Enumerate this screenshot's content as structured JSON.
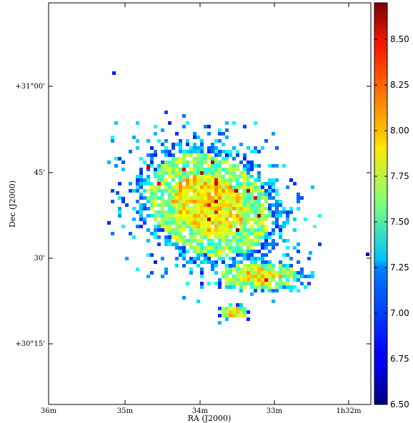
{
  "chart_data": {
    "type": "heatmap",
    "title": "",
    "xlabel": "RA (J2000)",
    "ylabel": "Dec (J2000)",
    "x_ticks": [
      "36m",
      "35m",
      "34m",
      "33m",
      "1h32m"
    ],
    "y_ticks": [
      "+31°00'",
      "45'",
      "30'",
      "+30°15'"
    ],
    "colorbar": {
      "colormap": "jet",
      "range": [
        6.5,
        8.7
      ],
      "ticks": [
        "6.50",
        "6.75",
        "7.00",
        "7.25",
        "7.50",
        "7.75",
        "8.00",
        "8.25",
        "8.50"
      ]
    },
    "grid": false,
    "description_values": {
      "bulk_range": [
        7.2,
        7.9
      ],
      "max_value": 8.7,
      "min_value": 6.5
    }
  }
}
